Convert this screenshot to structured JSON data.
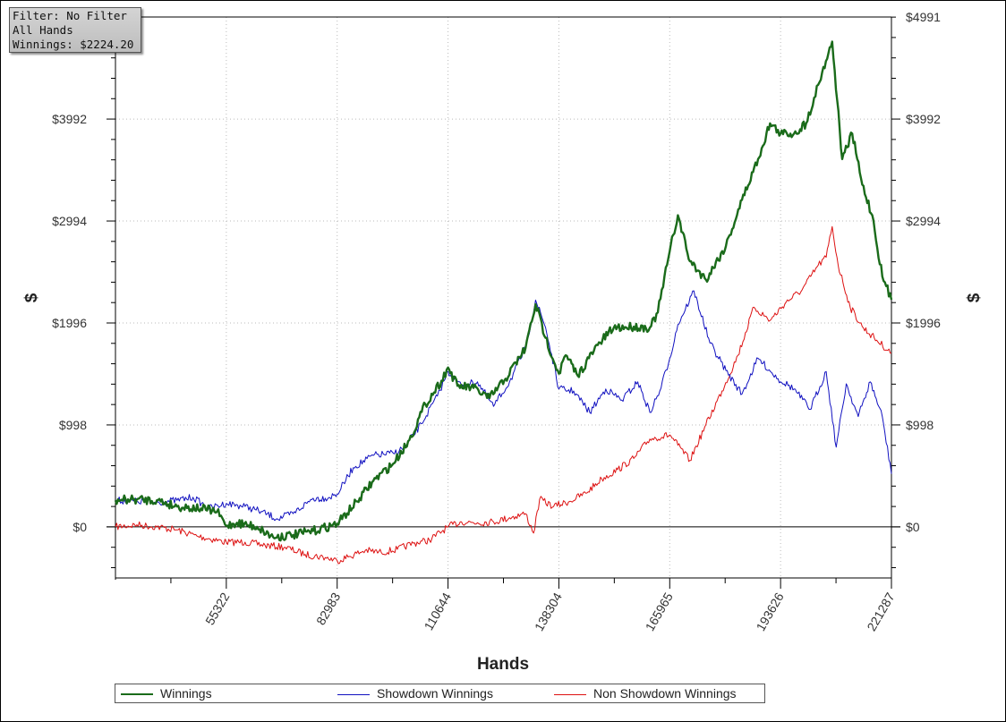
{
  "info": {
    "filter": "Filter: No Filter",
    "hands": "All Hands",
    "winnings": "Winnings: $2224.20"
  },
  "chart_data": {
    "type": "line",
    "xlabel": "Hands",
    "ylabel": "$",
    "xlim": [
      27661,
      221287
    ],
    "ylim": [
      -500,
      4991
    ],
    "yticks": [
      0,
      998,
      1996,
      2994,
      3992,
      4991
    ],
    "ytick_labels": [
      "$0",
      "$998",
      "$1996",
      "$2994",
      "$3992",
      "$4991"
    ],
    "xticks": [
      55322,
      82983,
      110644,
      138304,
      165965,
      193626,
      221287
    ],
    "xtick_labels": [
      "55322",
      "82983",
      "110644",
      "138304",
      "165965",
      "193626",
      "221287"
    ],
    "grid": true,
    "legend_position": "bottom",
    "series": [
      {
        "name": "Winnings",
        "color": "#1a6b1a",
        "x": [
          27661,
          33000,
          38000,
          43000,
          49000,
          53000,
          55322,
          58000,
          63000,
          67000,
          72000,
          77000,
          82983,
          88000,
          92000,
          97000,
          101000,
          105000,
          109000,
          110644,
          113000,
          117000,
          121000,
          125000,
          130000,
          132500,
          135000,
          138304,
          140000,
          143000,
          148000,
          152000,
          157000,
          161000,
          163000,
          165965,
          168000,
          171000,
          175000,
          180000,
          184000,
          188000,
          191000,
          193626,
          197000,
          200000,
          202000,
          204000,
          206500,
          209000,
          211500,
          214000,
          216500,
          219000,
          221287
        ],
        "y": [
          260,
          270,
          260,
          200,
          180,
          150,
          10,
          40,
          0,
          -100,
          -80,
          -40,
          30,
          250,
          450,
          620,
          850,
          1200,
          1430,
          1560,
          1380,
          1360,
          1260,
          1450,
          1750,
          2180,
          1850,
          1500,
          1680,
          1480,
          1780,
          1950,
          1960,
          1950,
          2100,
          2700,
          3050,
          2600,
          2420,
          2750,
          3200,
          3600,
          3950,
          3850,
          3850,
          3950,
          4200,
          4450,
          4750,
          3600,
          3850,
          3350,
          3050,
          2450,
          2224
        ]
      },
      {
        "name": "Showdown Winnings",
        "color": "#1010c0",
        "x": [
          27661,
          33000,
          38000,
          43000,
          47000,
          51000,
          55322,
          60000,
          64000,
          68000,
          72000,
          77000,
          80000,
          82983,
          87000,
          92000,
          97000,
          100000,
          104000,
          108000,
          110644,
          114000,
          118000,
          122000,
          126000,
          130000,
          132500,
          135000,
          138304,
          142000,
          146000,
          150000,
          154000,
          158000,
          161000,
          163500,
          165965,
          168000,
          172000,
          176000,
          180000,
          184000,
          188000,
          193000,
          197000,
          201000,
          205000,
          207500,
          210000,
          213000,
          216000,
          219000,
          221287
        ],
        "y": [
          260,
          250,
          240,
          260,
          290,
          180,
          230,
          200,
          150,
          80,
          130,
          280,
          280,
          320,
          580,
          700,
          720,
          780,
          1010,
          1280,
          1520,
          1380,
          1420,
          1180,
          1420,
          1750,
          2220,
          1950,
          1350,
          1330,
          1120,
          1350,
          1240,
          1420,
          1120,
          1330,
          1650,
          1980,
          2310,
          1800,
          1530,
          1300,
          1650,
          1450,
          1350,
          1150,
          1520,
          780,
          1400,
          1080,
          1420,
          1080,
          520
        ]
      },
      {
        "name": "Non Showdown Winnings",
        "color": "#dd1111",
        "x": [
          27661,
          33000,
          38000,
          43000,
          48000,
          55322,
          60000,
          65000,
          70000,
          75000,
          80000,
          82983,
          86000,
          90000,
          94000,
          98000,
          102000,
          106000,
          110644,
          114000,
          118000,
          122000,
          126000,
          130000,
          132000,
          133500,
          137000,
          141000,
          145000,
          149000,
          153000,
          157000,
          161000,
          165965,
          168000,
          171000,
          175000,
          179000,
          183000,
          187000,
          191000,
          195000,
          199000,
          203000,
          205000,
          206500,
          208000,
          211000,
          214000,
          217000,
          221287
        ],
        "y": [
          0,
          20,
          0,
          -30,
          -90,
          -150,
          -150,
          -180,
          -200,
          -270,
          -300,
          -330,
          -290,
          -230,
          -250,
          -220,
          -160,
          -130,
          0,
          50,
          40,
          50,
          90,
          130,
          -60,
          270,
          200,
          250,
          330,
          470,
          560,
          670,
          860,
          900,
          800,
          650,
          1000,
          1330,
          1680,
          2150,
          2020,
          2200,
          2320,
          2560,
          2640,
          2940,
          2560,
          2150,
          1960,
          1850,
          1700
        ]
      }
    ]
  }
}
